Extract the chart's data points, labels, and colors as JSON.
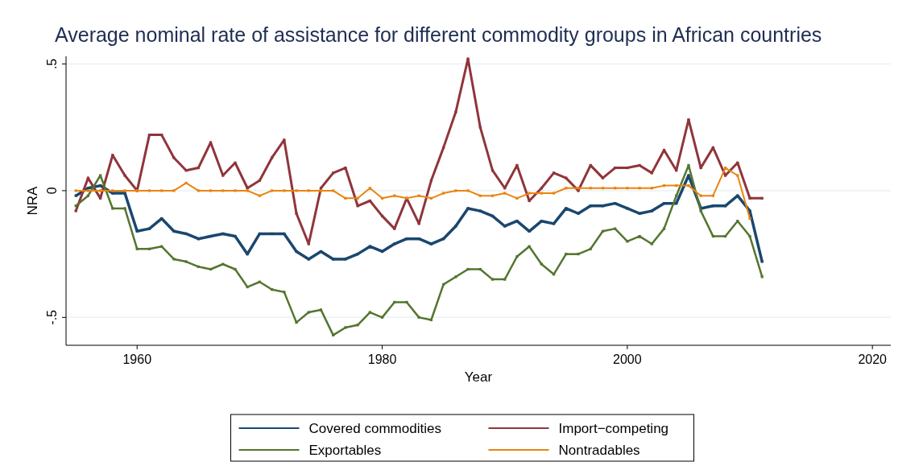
{
  "chart_data": {
    "type": "line",
    "title": "Average nominal rate of assistance for different commodity groups in African countries",
    "xlabel": "Year",
    "ylabel": "NRA",
    "x": [
      1955,
      1956,
      1957,
      1958,
      1959,
      1960,
      1961,
      1962,
      1963,
      1964,
      1965,
      1966,
      1967,
      1968,
      1969,
      1970,
      1971,
      1972,
      1973,
      1974,
      1975,
      1976,
      1977,
      1978,
      1979,
      1980,
      1981,
      1982,
      1983,
      1984,
      1985,
      1986,
      1987,
      1988,
      1989,
      1990,
      1991,
      1992,
      1993,
      1994,
      1995,
      1996,
      1997,
      1998,
      1999,
      2000,
      2001,
      2002,
      2003,
      2004,
      2005,
      2006,
      2007,
      2008,
      2009,
      2010,
      2011
    ],
    "series": [
      {
        "name": "Covered commodities",
        "color": "#1a476f",
        "values": [
          -0.02,
          0.01,
          0.02,
          -0.01,
          -0.01,
          -0.16,
          -0.15,
          -0.11,
          -0.16,
          -0.17,
          -0.19,
          -0.18,
          -0.17,
          -0.18,
          -0.25,
          -0.17,
          -0.17,
          -0.17,
          -0.24,
          -0.27,
          -0.24,
          -0.27,
          -0.27,
          -0.25,
          -0.22,
          -0.24,
          -0.21,
          -0.19,
          -0.19,
          -0.21,
          -0.19,
          -0.14,
          -0.07,
          -0.08,
          -0.1,
          -0.14,
          -0.12,
          -0.16,
          -0.12,
          -0.13,
          -0.07,
          -0.09,
          -0.06,
          -0.06,
          -0.05,
          -0.07,
          -0.09,
          -0.08,
          -0.05,
          -0.05,
          0.06,
          -0.07,
          -0.06,
          -0.06,
          -0.02,
          -0.08,
          -0.28
        ]
      },
      {
        "name": "Import−competing",
        "color": "#90353b",
        "values": [
          -0.08,
          0.05,
          -0.03,
          0.14,
          0.06,
          0.0,
          0.22,
          0.22,
          0.13,
          0.08,
          0.09,
          0.19,
          0.06,
          0.11,
          0.01,
          0.04,
          0.13,
          0.2,
          -0.09,
          -0.21,
          0.01,
          0.07,
          0.09,
          -0.06,
          -0.04,
          -0.1,
          -0.15,
          -0.03,
          -0.13,
          0.04,
          0.17,
          0.31,
          0.52,
          0.25,
          0.08,
          0.01,
          0.1,
          -0.04,
          0.01,
          0.07,
          0.05,
          0.0,
          0.1,
          0.05,
          0.09,
          0.09,
          0.1,
          0.07,
          0.16,
          0.08,
          0.28,
          0.09,
          0.17,
          0.06,
          0.11,
          -0.03,
          -0.03
        ]
      },
      {
        "name": "Exportables",
        "color": "#55752f",
        "values": [
          -0.06,
          -0.02,
          0.06,
          -0.07,
          -0.07,
          -0.23,
          -0.23,
          -0.22,
          -0.27,
          -0.28,
          -0.3,
          -0.31,
          -0.29,
          -0.31,
          -0.38,
          -0.36,
          -0.39,
          -0.4,
          -0.52,
          -0.48,
          -0.47,
          -0.57,
          -0.54,
          -0.53,
          -0.48,
          -0.5,
          -0.44,
          -0.44,
          -0.5,
          -0.51,
          -0.37,
          -0.34,
          -0.31,
          -0.31,
          -0.35,
          -0.35,
          -0.26,
          -0.22,
          -0.29,
          -0.33,
          -0.25,
          -0.25,
          -0.23,
          -0.16,
          -0.15,
          -0.2,
          -0.18,
          -0.21,
          -0.15,
          -0.02,
          0.1,
          -0.08,
          -0.18,
          -0.18,
          -0.12,
          -0.18,
          -0.34
        ]
      },
      {
        "name": "Nontradables",
        "color": "#e8850f",
        "values": [
          0.0,
          0.0,
          0.0,
          0.0,
          0.0,
          0.0,
          0.0,
          0.0,
          0.0,
          0.03,
          0.0,
          0.0,
          0.0,
          0.0,
          0.0,
          -0.02,
          0.0,
          0.0,
          0.0,
          0.0,
          0.0,
          0.0,
          -0.03,
          -0.03,
          0.01,
          -0.03,
          -0.02,
          -0.03,
          -0.02,
          -0.03,
          -0.01,
          0.0,
          0.0,
          -0.02,
          -0.02,
          -0.01,
          -0.03,
          -0.01,
          -0.01,
          -0.01,
          0.01,
          0.01,
          0.01,
          0.01,
          0.01,
          0.01,
          0.01,
          0.01,
          0.02,
          0.02,
          0.02,
          -0.02,
          -0.02,
          0.09,
          0.06,
          -0.11,
          null
        ]
      }
    ],
    "xlim": [
      1954.2,
      2021.5
    ],
    "xticks": [
      1960,
      1980,
      2000,
      2020
    ],
    "ylim": [
      -0.61,
      0.53
    ],
    "yticks": [
      {
        "value": -0.5,
        "label": "-.5"
      },
      0,
      {
        "value": 0.5,
        "label": ".5"
      }
    ],
    "grid": "y",
    "legend": "bottom",
    "marker": "square",
    "line_style": "solid"
  }
}
